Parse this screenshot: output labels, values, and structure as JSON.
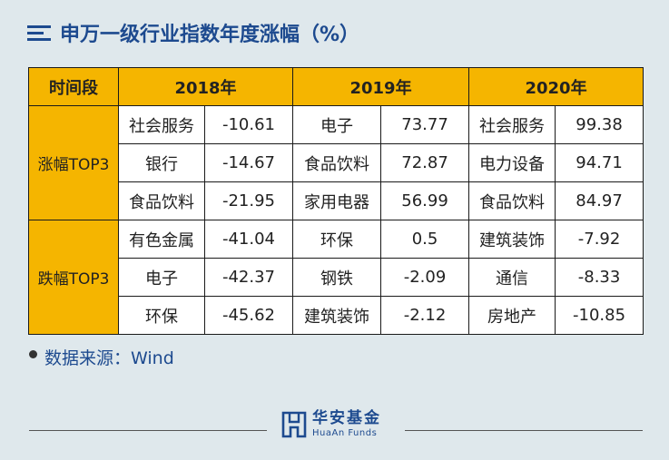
{
  "title": "申万一级行业指数年度涨幅（%）",
  "table": {
    "headers": [
      "时间段",
      "2018年",
      "2019年",
      "2020年"
    ],
    "rise_group": {
      "label": "涨幅TOP3",
      "rows": [
        {
          "i2018": "社会服务",
          "v2018": "-10.61",
          "i2019": "电子",
          "v2019": "73.77",
          "i2020": "社会服务",
          "v2020": "99.38"
        },
        {
          "i2018": "银行",
          "v2018": "-14.67",
          "i2019": "食品饮料",
          "v2019": "72.87",
          "i2020": "电力设备",
          "v2020": "94.71"
        },
        {
          "i2018": "食品饮料",
          "v2018": "-21.95",
          "i2019": "家用电器",
          "v2019": "56.99",
          "i2020": "食品饮料",
          "v2020": "84.97"
        }
      ]
    },
    "fall_group": {
      "label": "跌幅TOP3",
      "rows": [
        {
          "i2018": "有色金属",
          "v2018": "-41.04",
          "i2019": "环保",
          "v2019": "0.5",
          "i2020": "建筑装饰",
          "v2020": "-7.92"
        },
        {
          "i2018": "电子",
          "v2018": "-42.37",
          "i2019": "钢铁",
          "v2019": "-2.09",
          "i2020": "通信",
          "v2020": "-8.33"
        },
        {
          "i2018": "环保",
          "v2018": "-45.62",
          "i2019": "建筑装饰",
          "v2019": "-2.12",
          "i2020": "房地产",
          "v2020": "-10.85"
        }
      ]
    }
  },
  "source": "数据来源：Wind",
  "logo": {
    "cn": "华安基金",
    "en": "HuaAn Funds"
  },
  "colors": {
    "accent": "#f5b500",
    "brand": "#1d4a8f",
    "background": "#dfe8ec"
  }
}
